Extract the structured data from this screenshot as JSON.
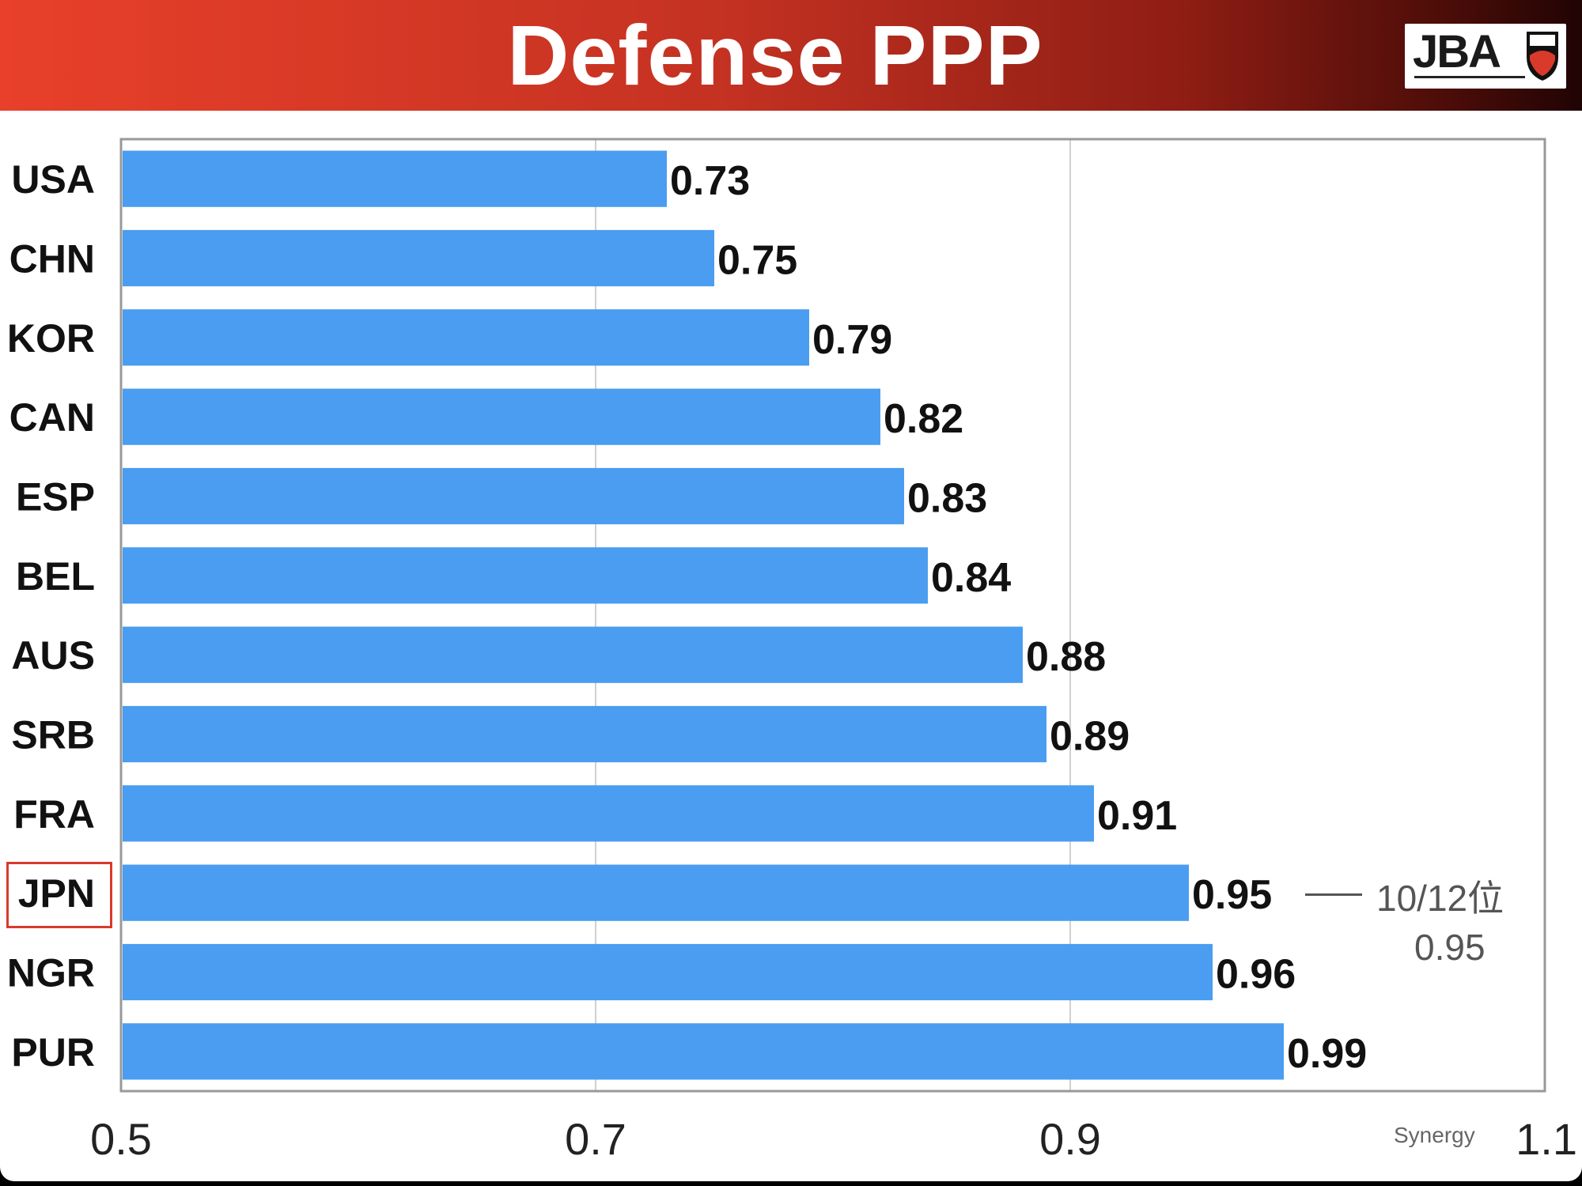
{
  "header": {
    "title": "Defense PPP",
    "logo_text": "JBA"
  },
  "colors": {
    "bar": "#4a9df0",
    "grid": "#d0d0d0",
    "frame": "#999999",
    "highlight": "#d93a2b"
  },
  "chart_data": {
    "type": "bar",
    "orientation": "horizontal",
    "title": "Defense PPP",
    "categories": [
      "USA",
      "CHN",
      "KOR",
      "CAN",
      "ESP",
      "BEL",
      "AUS",
      "SRB",
      "FRA",
      "JPN",
      "NGR",
      "PUR"
    ],
    "values": [
      0.73,
      0.75,
      0.79,
      0.82,
      0.83,
      0.84,
      0.88,
      0.89,
      0.91,
      0.95,
      0.96,
      0.99
    ],
    "value_labels": [
      "0.73",
      "0.75",
      "0.79",
      "0.82",
      "0.83",
      "0.84",
      "0.88",
      "0.89",
      "0.91",
      "0.95",
      "0.96",
      "0.99"
    ],
    "xlim": [
      0.5,
      1.1
    ],
    "x_ticks": [
      0.5,
      0.7,
      0.9,
      1.1
    ],
    "x_tick_labels": [
      "0.5",
      "0.7",
      "0.9",
      "1.1"
    ],
    "grid": true,
    "highlight_category": "JPN",
    "annotation": {
      "rank": "10/12位",
      "value": "0.95"
    },
    "source": "Synergy"
  }
}
